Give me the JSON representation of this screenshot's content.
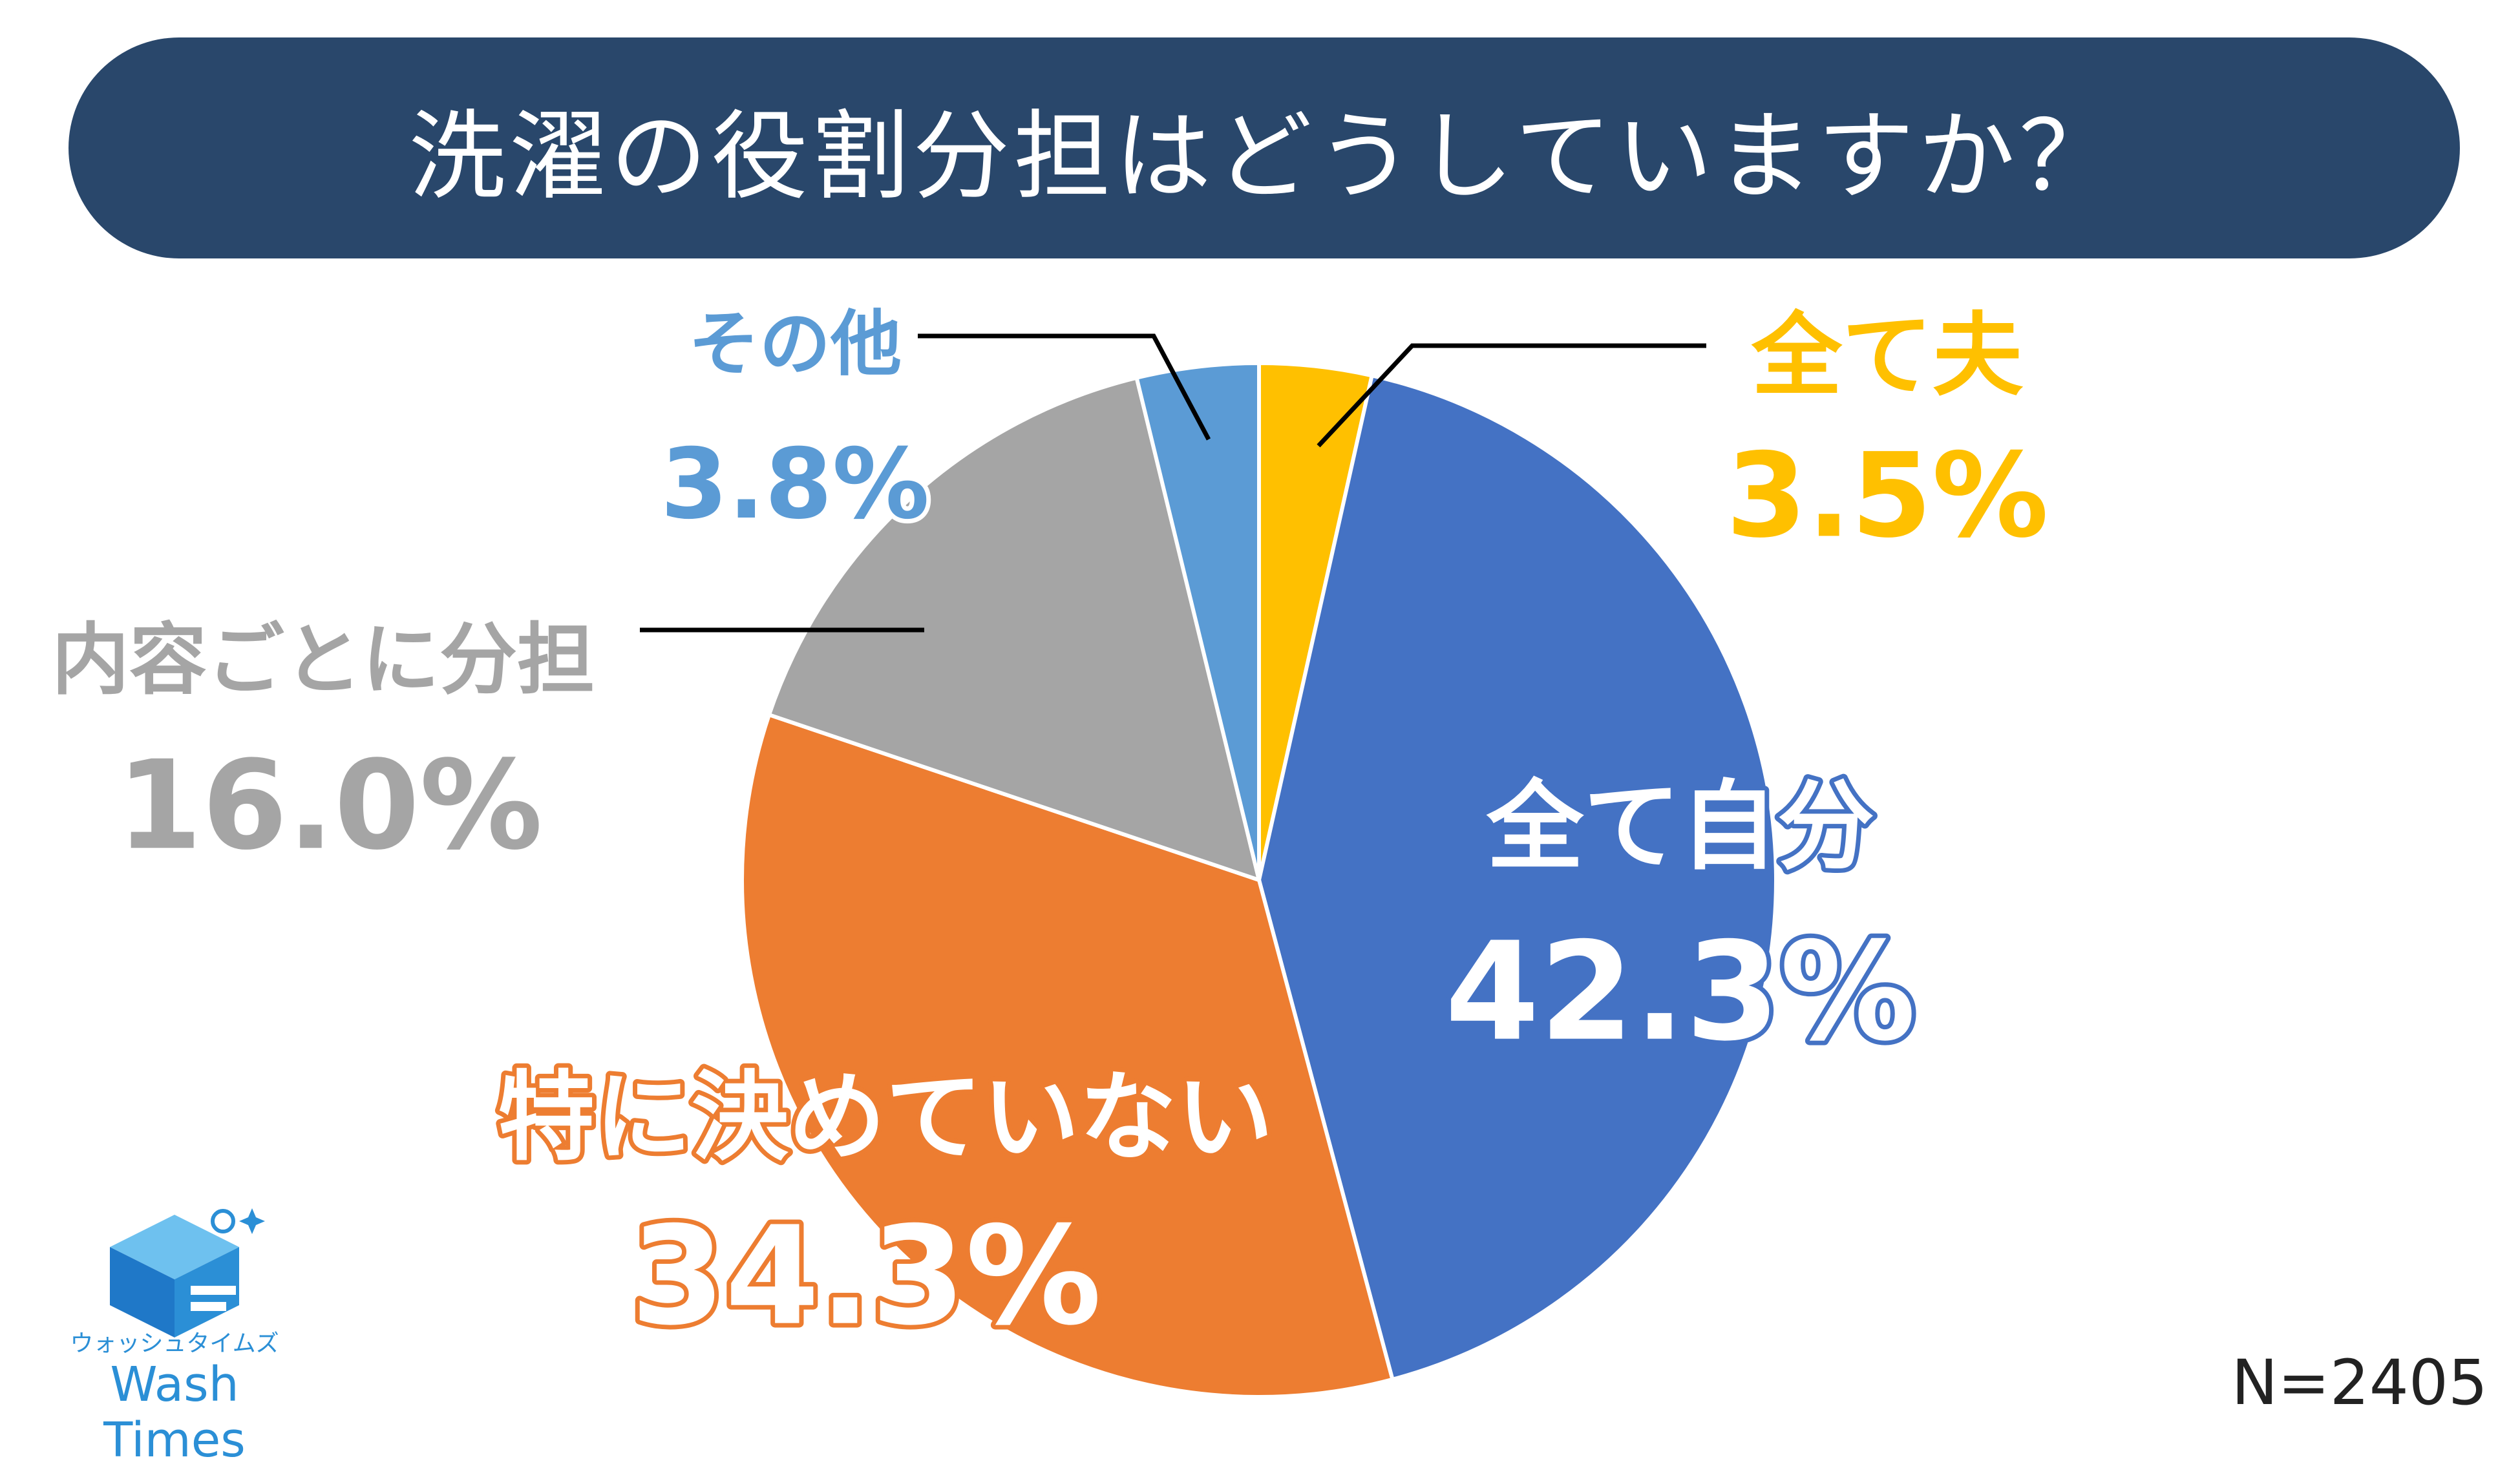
{
  "title": "洗濯の役割分担はどうしていますか？",
  "n_label": "N=2405",
  "logo": {
    "sub": "ウォッシュタイムズ",
    "main": "Wash Times"
  },
  "chart_data": {
    "type": "pie",
    "title": "洗濯の役割分担はどうしていますか？",
    "slices": [
      {
        "label": "全て夫",
        "value": 3.5,
        "value_label": "3.5%",
        "color": "#ffc000"
      },
      {
        "label": "全て自分",
        "value": 42.3,
        "value_label": "42.3%",
        "color": "#4472c4"
      },
      {
        "label": "特に決めていない",
        "value": 34.3,
        "value_label": "34.3%",
        "color": "#ed7d31"
      },
      {
        "label": "内容ごとに分担",
        "value": 16.0,
        "value_label": "16.0%",
        "color": "#a5a5a5"
      },
      {
        "label": "その他",
        "value": 3.8,
        "value_label": "3.8%",
        "color": "#5b9bd5"
      }
    ],
    "start": "12 o'clock",
    "direction": "clockwise"
  }
}
